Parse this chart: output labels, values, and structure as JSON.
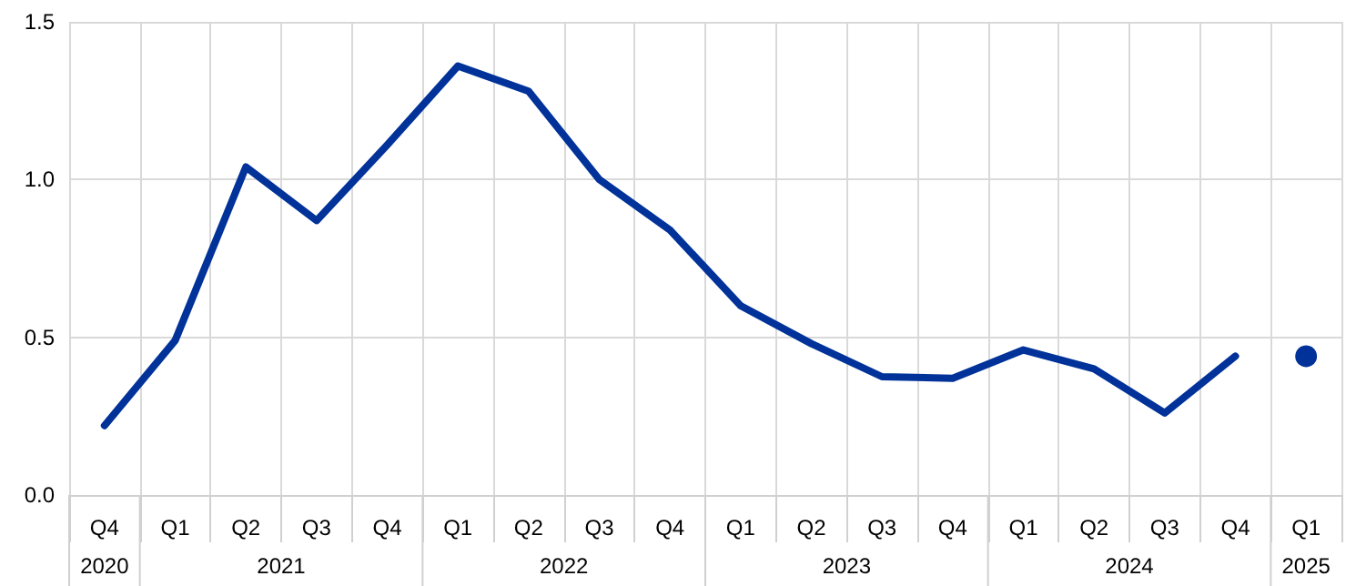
{
  "chart_data": {
    "type": "line",
    "categories": [
      "Q4",
      "Q1",
      "Q2",
      "Q3",
      "Q4",
      "Q1",
      "Q2",
      "Q3",
      "Q4",
      "Q1",
      "Q2",
      "Q3",
      "Q4",
      "Q1",
      "Q2",
      "Q3",
      "Q4",
      "Q1"
    ],
    "series": [
      {
        "color": "#003299",
        "marker": "none",
        "values": [
          0.22,
          0.49,
          1.04,
          0.87,
          1.11,
          1.36,
          1.28,
          1.0,
          0.84,
          0.6,
          0.48,
          0.375,
          0.37,
          0.46,
          0.4,
          0.26,
          0.44,
          null
        ]
      },
      {
        "type": "scatter",
        "marker": "circle",
        "color": "#003299",
        "values": [
          null,
          null,
          null,
          null,
          null,
          null,
          null,
          null,
          null,
          null,
          null,
          null,
          null,
          null,
          null,
          null,
          null,
          0.44
        ]
      }
    ],
    "annotations": [
      "2020",
      "2021",
      "2022",
      "2023",
      "2024",
      "2025"
    ],
    "ylim": [
      0,
      1.5
    ],
    "yticks": [
      {
        "value": 0,
        "label": "0.0"
      },
      0.5,
      {
        "value": 1,
        "label": "1.0"
      },
      1.5
    ],
    "grid": true,
    "line_style": "solid"
  }
}
